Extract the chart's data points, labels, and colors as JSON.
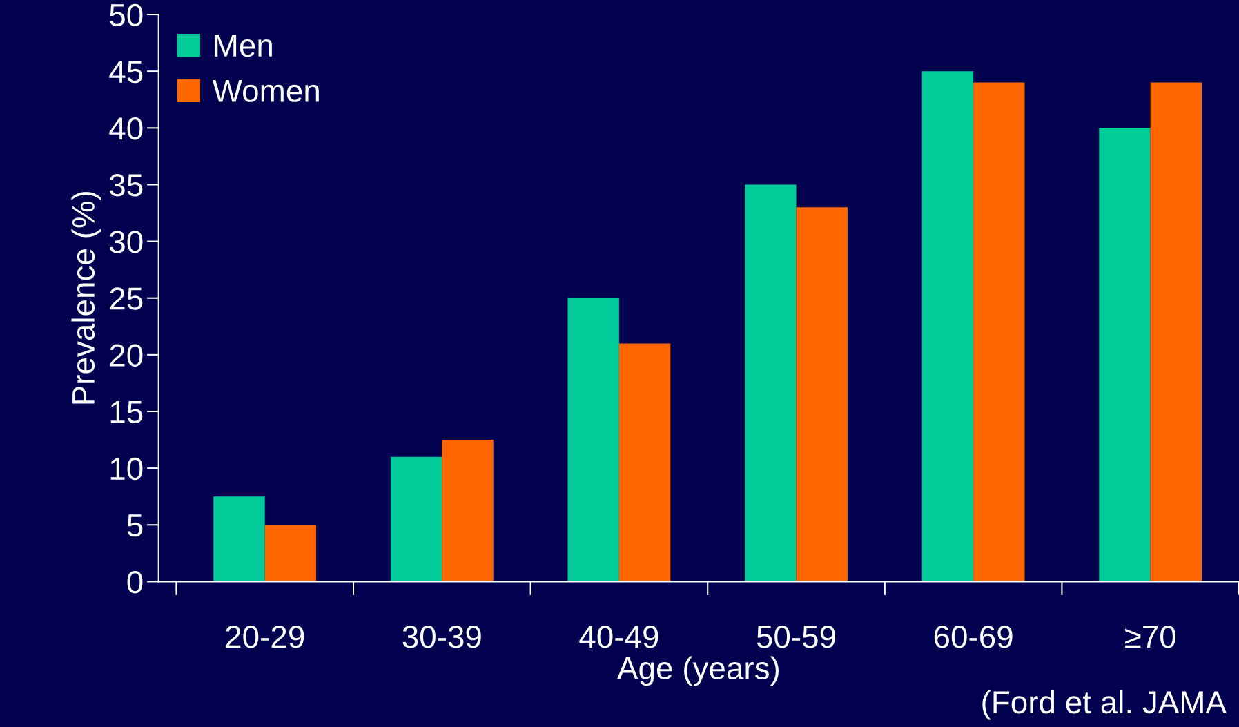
{
  "chart_data": {
    "type": "bar",
    "xlabel": "Age (years)",
    "ylabel": "Prevalence (%)",
    "categories": [
      "20-29",
      "30-39",
      "40-49",
      "50-59",
      "60-69",
      "≥70"
    ],
    "series": [
      {
        "name": "Men",
        "color": "#00cc99",
        "values": [
          7.5,
          11,
          25,
          35,
          45,
          40
        ]
      },
      {
        "name": "Women",
        "color": "#ff6600",
        "values": [
          5,
          12.5,
          21,
          33,
          44,
          44
        ]
      }
    ],
    "ylim": [
      0,
      50
    ],
    "yticks": [
      0,
      5,
      10,
      15,
      20,
      25,
      30,
      35,
      40,
      45,
      50
    ],
    "legend": "top left",
    "grid": false,
    "annotations": [
      "(Ford et al. JAMA"
    ]
  }
}
